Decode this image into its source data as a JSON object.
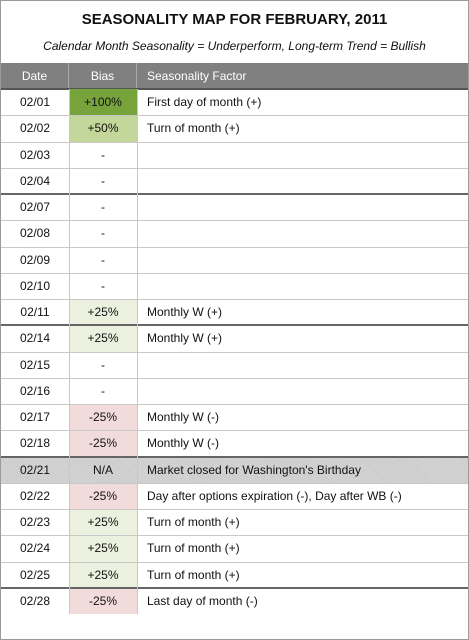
{
  "header": {
    "title": "SEASONALITY MAP FOR FEBRUARY, 2011",
    "subtitle": "Calendar Month Seasonality = Underperform, Long-term Trend = Bullish"
  },
  "table": {
    "columns": [
      "Date",
      "Bias",
      "Seasonality Factor"
    ],
    "rows": [
      {
        "date": "02/01",
        "bias": "+100%",
        "factor": "First day of month (+)",
        "fill": "#77a33c"
      },
      {
        "date": "02/02",
        "bias": "+50%",
        "factor": "Turn of month (+)",
        "fill": "#c4d79b"
      },
      {
        "date": "02/03",
        "bias": "-"
      },
      {
        "date": "02/04",
        "bias": "-"
      },
      {
        "date": "02/07",
        "bias": "-"
      },
      {
        "date": "02/08",
        "bias": "-"
      },
      {
        "date": "02/09",
        "bias": "-"
      },
      {
        "date": "02/10",
        "bias": "-"
      },
      {
        "date": "02/11",
        "bias": "+25%",
        "factor": "Monthly W (+)",
        "fill": "#ebf1de"
      },
      {
        "date": "02/14",
        "bias": "+25%",
        "factor": "Monthly W (+)",
        "fill": "#ebf1de"
      },
      {
        "date": "02/15",
        "bias": "-"
      },
      {
        "date": "02/16",
        "bias": "-"
      },
      {
        "date": "02/17",
        "bias": "-25%",
        "factor": "Monthly W (-)",
        "fill": "#f2dcdb"
      },
      {
        "date": "02/18",
        "bias": "-25%",
        "factor": "Monthly W (-)",
        "fill": "#f2dcdb"
      },
      {
        "date": "02/21",
        "bias": "N/A",
        "factor": "Market closed for Washington's Birthday",
        "row_fill": "#c8c8c8"
      },
      {
        "date": "02/22",
        "bias": "-25%",
        "factor": "Day after options expiration (-), Day after WB (-)",
        "fill": "#f2dcdb"
      },
      {
        "date": "02/23",
        "bias": "+25%",
        "factor": "Turn of month (+)",
        "fill": "#ebf1de"
      },
      {
        "date": "02/24",
        "bias": "+25%",
        "factor": "Turn of month (+)",
        "fill": "#ebf1de"
      },
      {
        "date": "02/25",
        "bias": "+25%",
        "factor": "Turn of month (+)",
        "fill": "#ebf1de"
      },
      {
        "date": "02/28",
        "bias": "-25%",
        "factor": "Last day of month (-)",
        "fill": "#f2dcdb"
      }
    ]
  }
}
